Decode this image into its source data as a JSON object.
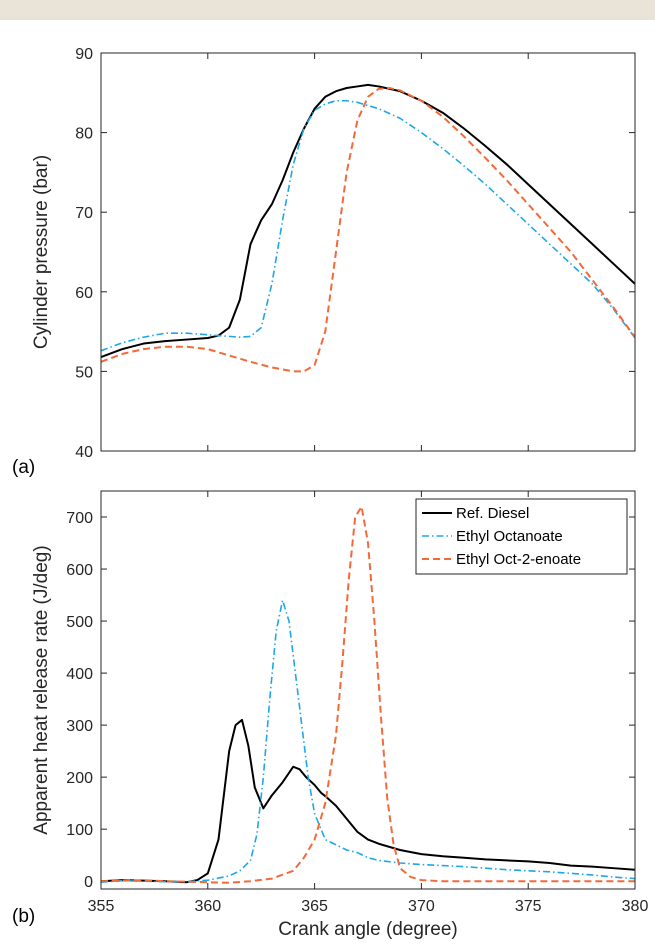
{
  "colors": {
    "topbar": "#e9e3d8",
    "series": [
      "#000000",
      "#1ea7e6",
      "#f2693a"
    ]
  },
  "chart_data": [
    {
      "type": "line",
      "panel_label": "(a)",
      "ylabel": "Cylinder pressure (bar)",
      "xlim": [
        355,
        380
      ],
      "ylim": [
        40,
        90
      ],
      "yticks": [
        40,
        50,
        60,
        70,
        80,
        90
      ],
      "series": [
        {
          "name": "Ref. Diesel",
          "style": "solid",
          "x": [
            355,
            356,
            357,
            358,
            359,
            360,
            360.5,
            361,
            361.5,
            362,
            362.5,
            363,
            363.5,
            364,
            364.5,
            365,
            365.5,
            366,
            366.5,
            367,
            367.5,
            368,
            369,
            370,
            371,
            372,
            373,
            374,
            375,
            376,
            377,
            378,
            379,
            380
          ],
          "y": [
            51.8,
            52.8,
            53.5,
            53.8,
            54,
            54.2,
            54.5,
            55.5,
            59,
            66,
            69,
            71,
            74,
            77.5,
            80.5,
            83,
            84.5,
            85.2,
            85.6,
            85.8,
            86,
            85.8,
            85.2,
            84,
            82.5,
            80.5,
            78.3,
            76,
            73.5,
            71,
            68.5,
            66,
            63.5,
            61
          ]
        },
        {
          "name": "Ethyl Octanoate",
          "style": "dashdot",
          "x": [
            355,
            356,
            357,
            358,
            359,
            360,
            361,
            361.5,
            362,
            362.5,
            363,
            363.5,
            364,
            364.5,
            365,
            365.5,
            366,
            366.5,
            367,
            368,
            369,
            370,
            371,
            372,
            373,
            374,
            375,
            376,
            377,
            378,
            379,
            380
          ],
          "y": [
            52.6,
            53.6,
            54.3,
            54.8,
            54.8,
            54.6,
            54.4,
            54.3,
            54.4,
            55.5,
            61,
            69,
            76,
            80.5,
            82.8,
            83.6,
            84,
            84,
            83.8,
            83,
            81.8,
            80,
            78,
            75.8,
            73.5,
            71,
            68.5,
            66,
            63.5,
            61,
            57.8,
            54.2
          ]
        },
        {
          "name": "Ethyl Oct-2-enoate",
          "style": "dashed",
          "x": [
            355,
            356,
            357,
            358,
            359,
            360,
            361,
            362,
            363,
            364,
            364.5,
            365,
            365.5,
            366,
            366.5,
            367,
            367.5,
            368,
            368.5,
            369,
            370,
            371,
            372,
            373,
            374,
            375,
            376,
            377,
            378,
            379,
            380
          ],
          "y": [
            51.2,
            52.2,
            52.8,
            53.1,
            53.1,
            52.8,
            52,
            51.2,
            50.5,
            50,
            50,
            50.8,
            55,
            65,
            75,
            81.5,
            84.5,
            85.5,
            85.6,
            85.3,
            84,
            82,
            79.5,
            76.8,
            74,
            71,
            68,
            65,
            61.5,
            58,
            54.3
          ]
        }
      ]
    },
    {
      "type": "line",
      "panel_label": "(b)",
      "xlabel": "Crank angle (degree)",
      "ylabel": "Apparent heat release rate (J/deg)",
      "xlim": [
        355,
        380
      ],
      "ylim": [
        -15,
        750
      ],
      "xticks": [
        355,
        360,
        365,
        370,
        375,
        380
      ],
      "yticks": [
        0,
        100,
        200,
        300,
        400,
        500,
        600,
        700
      ],
      "legend": {
        "position": "top-right",
        "entries": [
          "Ref. Diesel",
          "Ethyl Octanoate",
          "Ethyl Oct-2-enoate"
        ]
      },
      "series": [
        {
          "name": "Ref. Diesel",
          "style": "solid",
          "x": [
            355,
            356,
            357,
            358,
            359,
            359.5,
            360,
            360.5,
            361,
            361.3,
            361.6,
            361.9,
            362.2,
            362.6,
            363,
            363.5,
            364,
            364.3,
            364.6,
            365,
            365.3,
            365.6,
            366,
            366.5,
            367,
            367.5,
            368,
            369,
            370,
            371,
            372,
            373,
            374,
            375,
            376,
            377,
            378,
            379,
            380
          ],
          "y": [
            0,
            2,
            1,
            0,
            -2,
            2,
            15,
            80,
            250,
            300,
            310,
            260,
            180,
            140,
            165,
            190,
            220,
            215,
            200,
            185,
            170,
            160,
            145,
            120,
            95,
            80,
            72,
            60,
            52,
            48,
            45,
            42,
            40,
            38,
            35,
            30,
            28,
            25,
            22
          ]
        },
        {
          "name": "Ethyl Octanoate",
          "style": "dashdot",
          "x": [
            355,
            356,
            357,
            358,
            359,
            360,
            361,
            361.5,
            362,
            362.3,
            362.6,
            362.9,
            363.2,
            363.5,
            363.8,
            364.1,
            364.4,
            364.7,
            365,
            365.5,
            366,
            366.5,
            367,
            367.5,
            368,
            369,
            370,
            371,
            372,
            373,
            374,
            375,
            376,
            377,
            378,
            379,
            380
          ],
          "y": [
            -2,
            1,
            0,
            -1,
            -1,
            2,
            10,
            20,
            40,
            90,
            200,
            350,
            480,
            540,
            500,
            400,
            300,
            200,
            130,
            80,
            70,
            60,
            55,
            45,
            40,
            35,
            32,
            30,
            28,
            25,
            22,
            20,
            18,
            15,
            12,
            8,
            5
          ]
        },
        {
          "name": "Ethyl Oct-2-enoate",
          "style": "dashed",
          "x": [
            355,
            356,
            357,
            358,
            359,
            360,
            361,
            362,
            363,
            364,
            364.5,
            365,
            365.5,
            366,
            366.3,
            366.6,
            366.9,
            367.2,
            367.5,
            367.8,
            368.1,
            368.4,
            368.7,
            369,
            369.5,
            370,
            371,
            372,
            373,
            374,
            375,
            376,
            377,
            378,
            379,
            380
          ],
          "y": [
            0,
            1,
            2,
            0,
            -1,
            -2,
            -3,
            0,
            5,
            20,
            45,
            80,
            150,
            280,
            420,
            580,
            700,
            720,
            650,
            500,
            320,
            160,
            70,
            25,
            8,
            2,
            0,
            0,
            0,
            0,
            0,
            0,
            0,
            0,
            0,
            0
          ]
        }
      ]
    }
  ]
}
